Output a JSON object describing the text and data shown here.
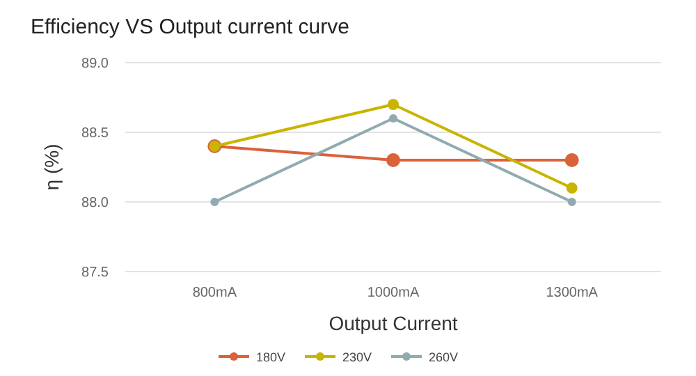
{
  "chart_data": {
    "type": "line",
    "title": "Efficiency VS Output current curve",
    "xlabel": "Output Current",
    "ylabel": "η (%)",
    "categories": [
      "800mA",
      "1000mA",
      "1300mA"
    ],
    "series": [
      {
        "name": "180V",
        "color": "#d9623b",
        "values": [
          88.4,
          88.3,
          88.3
        ]
      },
      {
        "name": "230V",
        "color": "#c9b400",
        "values": [
          88.4,
          88.7,
          88.1
        ]
      },
      {
        "name": "260V",
        "color": "#8fabb0",
        "values": [
          88.0,
          88.6,
          88.0
        ]
      }
    ],
    "ylim": [
      87.5,
      89.0
    ],
    "yticks": [
      {
        "value": 87.5,
        "label": "87.5"
      },
      {
        "value": 88,
        "label": "88.0"
      },
      {
        "value": 88.5,
        "label": "88.5"
      },
      {
        "value": 89,
        "label": "89.0"
      }
    ],
    "grid": "y",
    "legend": "bottom",
    "marker": "circle",
    "line_style": "solid"
  }
}
